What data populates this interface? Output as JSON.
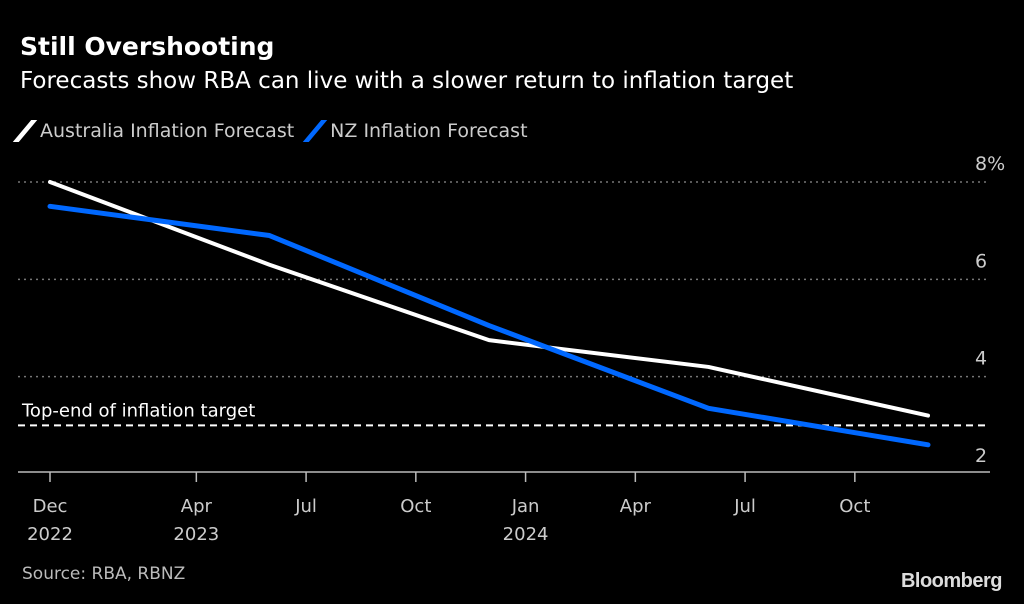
{
  "header": {
    "title": "Still Overshooting",
    "subtitle": "Forecasts show RBA can live with a slower return to inflation target"
  },
  "footer": {
    "source": "Source: RBA, RBNZ",
    "logo": "Bloomberg"
  },
  "chart_data": {
    "type": "line",
    "title": "Still Overshooting",
    "subtitle": "Forecasts show RBA can live with a slower return to inflation target",
    "x_unit": "months since Dec 2022",
    "x": [
      0,
      6,
      12,
      18,
      24
    ],
    "x_dates": [
      "Dec 2022",
      "Jun 2023",
      "Dec 2023",
      "Jun 2024",
      "Dec 2024"
    ],
    "xlim": [
      0,
      24
    ],
    "ylim": [
      2,
      8
    ],
    "y_ticks": [
      {
        "v": 8,
        "label": "8%"
      },
      {
        "v": 6,
        "label": "6"
      },
      {
        "v": 4,
        "label": "4"
      },
      {
        "v": 2,
        "label": "2"
      }
    ],
    "x_ticks": [
      {
        "m": 0,
        "label": "Dec",
        "year": "2022"
      },
      {
        "m": 4,
        "label": "Apr",
        "year": "2023"
      },
      {
        "m": 7,
        "label": "Jul",
        "year": ""
      },
      {
        "m": 10,
        "label": "Oct",
        "year": ""
      },
      {
        "m": 13,
        "label": "Jan",
        "year": "2024"
      },
      {
        "m": 16,
        "label": "Apr",
        "year": ""
      },
      {
        "m": 19,
        "label": "Jul",
        "year": ""
      },
      {
        "m": 22,
        "label": "Oct",
        "year": ""
      }
    ],
    "series": [
      {
        "name": "Australia Inflation Forecast",
        "color": "#ffffff",
        "values": [
          8.0,
          6.3,
          4.75,
          4.2,
          3.2
        ]
      },
      {
        "name": "NZ Inflation Forecast",
        "color": "#0068ff",
        "values": [
          7.5,
          6.9,
          5.05,
          3.35,
          2.6
        ]
      }
    ],
    "annotations": [
      {
        "label": "Top-end of inflation target",
        "y": 3.0,
        "style": "dashed"
      }
    ],
    "grid": true,
    "legend_position": "top-left",
    "y_axis_position": "right"
  }
}
